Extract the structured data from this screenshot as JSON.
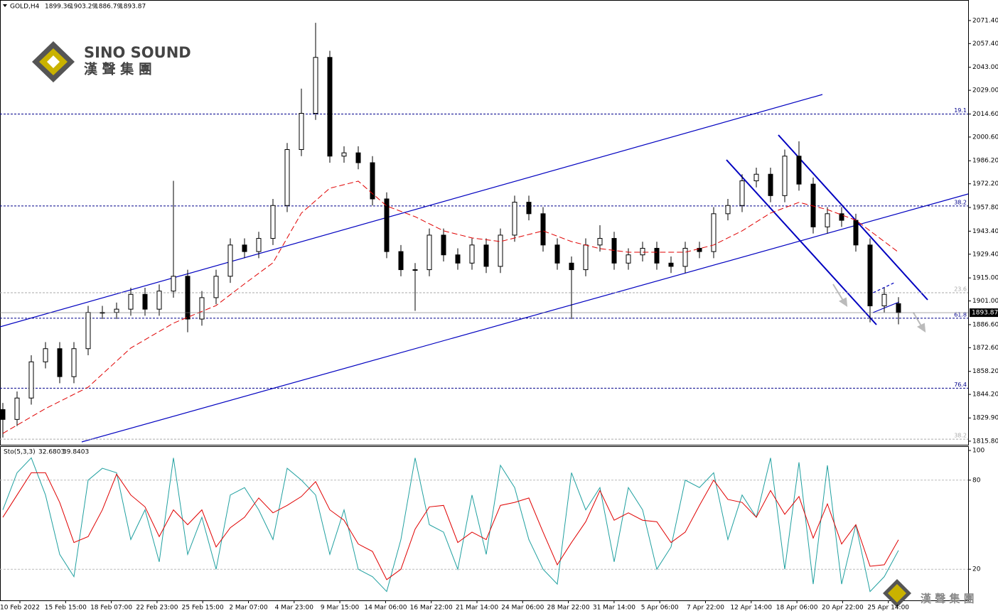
{
  "header": {
    "symbol": "GOLD,H4"
  },
  "logo": {
    "name": "SINO SOUND",
    "chinese": "漢 聲 集 團"
  },
  "chart_data": [
    {
      "type": "candlestick",
      "open": [
        1835,
        1829,
        1842,
        1864,
        1872,
        1855,
        1872,
        1894,
        1894,
        1896,
        1905,
        1896,
        1907,
        1916,
        1890,
        1903,
        1916,
        1935,
        1931,
        1939,
        1959,
        1993,
        2015,
        2049,
        1989,
        1991,
        1985,
        1963,
        1931,
        1920,
        1920,
        1941,
        1929,
        1924,
        1935,
        1922,
        1941,
        1961,
        1954,
        1935,
        1924,
        1920,
        1935,
        1939,
        1924,
        1929,
        1933,
        1924,
        1922,
        1933,
        1931,
        1954,
        1959,
        1974,
        1978,
        1965,
        1989,
        1972,
        1946,
        1954,
        1950,
        1935,
        1898,
        1899.36
      ],
      "high": [
        1839,
        1846,
        1868,
        1876,
        1876,
        1876,
        1898,
        1898,
        1900,
        1909,
        1909,
        1911,
        1974,
        1920,
        1907,
        1920,
        1939,
        1939,
        1943,
        1963,
        1997,
        2030,
        2070,
        2053,
        1995,
        1995,
        1989,
        1967,
        1935,
        1924,
        1945,
        1945,
        1933,
        1939,
        1939,
        1945,
        1965,
        1965,
        1958,
        1939,
        1928,
        1939,
        1947,
        1943,
        1933,
        1937,
        1937,
        1928,
        1937,
        1937,
        1958,
        1963,
        1978,
        1982,
        1982,
        1993,
        1998,
        1976,
        1958,
        1958,
        1954,
        1939,
        1909,
        1903.29
      ],
      "low": [
        1818,
        1825,
        1838,
        1860,
        1851,
        1851,
        1868,
        1890,
        1890,
        1892,
        1892,
        1892,
        1903,
        1882,
        1886,
        1899,
        1912,
        1927,
        1927,
        1935,
        1955,
        1989,
        2011,
        1985,
        1985,
        1981,
        1959,
        1927,
        1916,
        1895,
        1916,
        1925,
        1920,
        1920,
        1918,
        1918,
        1937,
        1950,
        1931,
        1920,
        1890,
        1916,
        1931,
        1920,
        1920,
        1925,
        1920,
        1918,
        1918,
        1927,
        1927,
        1950,
        1955,
        1970,
        1961,
        1961,
        1968,
        1942,
        1942,
        1946,
        1931,
        1888,
        1894,
        1886.79
      ],
      "close": [
        1829,
        1842,
        1864,
        1872,
        1855,
        1872,
        1894,
        1894,
        1896,
        1905,
        1896,
        1907,
        1916,
        1890,
        1903,
        1916,
        1935,
        1931,
        1939,
        1959,
        1993,
        2015,
        2049,
        1989,
        1991,
        1985,
        1963,
        1931,
        1920,
        1920,
        1941,
        1929,
        1924,
        1935,
        1922,
        1941,
        1961,
        1954,
        1935,
        1924,
        1920,
        1935,
        1939,
        1924,
        1929,
        1933,
        1924,
        1922,
        1933,
        1931,
        1954,
        1959,
        1974,
        1978,
        1965,
        1989,
        1972,
        1946,
        1954,
        1950,
        1935,
        1898,
        1905,
        1893.87
      ],
      "ma": {
        "color": "#e00000",
        "x": [
          0,
          3,
          6,
          9,
          12,
          15,
          17,
          19,
          21,
          23,
          25,
          27,
          29,
          31,
          33,
          35,
          37,
          38,
          40,
          42,
          44,
          46,
          48,
          50,
          52,
          54,
          56,
          58,
          60,
          63
        ],
        "values": [
          1820.5,
          1835.6,
          1848.6,
          1872.4,
          1887.5,
          1898.2,
          1911.4,
          1924.2,
          1954.4,
          1969.5,
          1973.8,
          1958.7,
          1952.2,
          1943.6,
          1939.3,
          1937.1,
          1941.4,
          1943.6,
          1937.1,
          1932.8,
          1930.6,
          1930.6,
          1930.6,
          1935.0,
          1943.6,
          1954.4,
          1960.9,
          1956.5,
          1950.1,
          1930.6
        ]
      },
      "ylim": [
        1813.6,
        2078.7
      ],
      "yticks": [
        {
          "value": 1815.8,
          "label": "1815.80"
        },
        {
          "value": 1829.9,
          "label": "1829.90"
        },
        {
          "value": 1844.2,
          "label": "1844.20"
        },
        {
          "value": 1858.2,
          "label": "1858.20"
        },
        {
          "value": 1872.6,
          "label": "1872.60"
        },
        {
          "value": 1886.6,
          "label": "1886.60"
        },
        {
          "value": 1901,
          "label": "1901.00"
        },
        {
          "value": 1915,
          "label": "1915.00"
        },
        {
          "value": 1929.4,
          "label": "1929.40"
        },
        {
          "value": 1943.4,
          "label": "1943.40"
        },
        {
          "value": 1957.8,
          "label": "1957.80"
        },
        {
          "value": 1972.2,
          "label": "1972.20"
        },
        {
          "value": 1986.2,
          "label": "1986.20"
        },
        {
          "value": 2000.6,
          "label": "2000.60"
        },
        {
          "value": 2014.6,
          "label": "2014.60"
        },
        {
          "value": 2029,
          "label": "2029.00"
        },
        {
          "value": 2043,
          "label": "2043.00"
        },
        {
          "value": 2057.4,
          "label": "2057.40"
        },
        {
          "value": 2071.4,
          "label": "2071.40"
        }
      ],
      "fib_levels": [
        {
          "label": "19.1",
          "price": 2014.6,
          "color": "#00008b"
        },
        {
          "label": "38.2",
          "price": 1958.7,
          "color": "#00008b"
        },
        {
          "label": "23.6",
          "price": 1906,
          "color": "#aaaaaa"
        },
        {
          "label": "61.8",
          "price": 1890.5,
          "color": "#00008b"
        },
        {
          "label": "76.4",
          "price": 1848,
          "color": "#00008b"
        },
        {
          "label": "38.2",
          "price": 1817,
          "color": "#aaaaaa"
        }
      ],
      "x_labels": [
        "10 Feb 2022",
        "15 Feb 15:00",
        "18 Feb 07:00",
        "22 Feb 23:00",
        "25 Feb 15:00",
        "2 Mar 07:00",
        "4 Mar 23:00",
        "9 Mar 15:00",
        "14 Mar 06:00",
        "16 Mar 22:00",
        "21 Mar 14:00",
        "24 Mar 06:00",
        "28 Mar 22:00",
        "31 Mar 14:00",
        "5 Apr 06:00",
        "7 Apr 22:00",
        "12 Apr 14:00",
        "18 Apr 06:00",
        "20 Apr 22:00",
        "25 Apr 14:00"
      ]
    },
    {
      "type": "stochastic",
      "title": "Sto(5,3,3)",
      "series": [
        {
          "color": "#20a0a0",
          "values": [
            60,
            85,
            95,
            70,
            30,
            15,
            80,
            88,
            85,
            40,
            60,
            25,
            95,
            30,
            55,
            20,
            70,
            75,
            60,
            40,
            88,
            80,
            70,
            30,
            60,
            20,
            15,
            5,
            40,
            95,
            50,
            45,
            20,
            70,
            30,
            90,
            75,
            40,
            20,
            10,
            85,
            60,
            75,
            25,
            75,
            60,
            20,
            35,
            80,
            75,
            85,
            40,
            70,
            55,
            95,
            20,
            92,
            10,
            90,
            10,
            50,
            5,
            15,
            32.6803
          ]
        },
        {
          "color": "#e00000",
          "values": [
            55,
            70,
            85,
            85,
            65,
            38,
            42,
            60,
            84,
            70,
            62,
            42,
            60,
            50,
            60,
            35,
            48,
            55,
            68,
            58,
            63,
            69,
            79,
            60,
            53,
            37,
            32,
            13,
            20,
            47,
            62,
            63,
            38,
            45,
            40,
            63,
            65,
            68,
            45,
            23,
            38,
            52,
            73,
            53,
            58,
            53,
            52,
            38,
            45,
            63,
            80,
            67,
            65,
            55,
            73,
            57,
            69,
            41,
            64,
            37,
            50,
            22,
            23,
            39.8403
          ]
        }
      ],
      "ylim": [
        0,
        100
      ],
      "yticks": [
        100,
        80,
        20
      ],
      "grid": [
        80,
        20
      ]
    }
  ]
}
